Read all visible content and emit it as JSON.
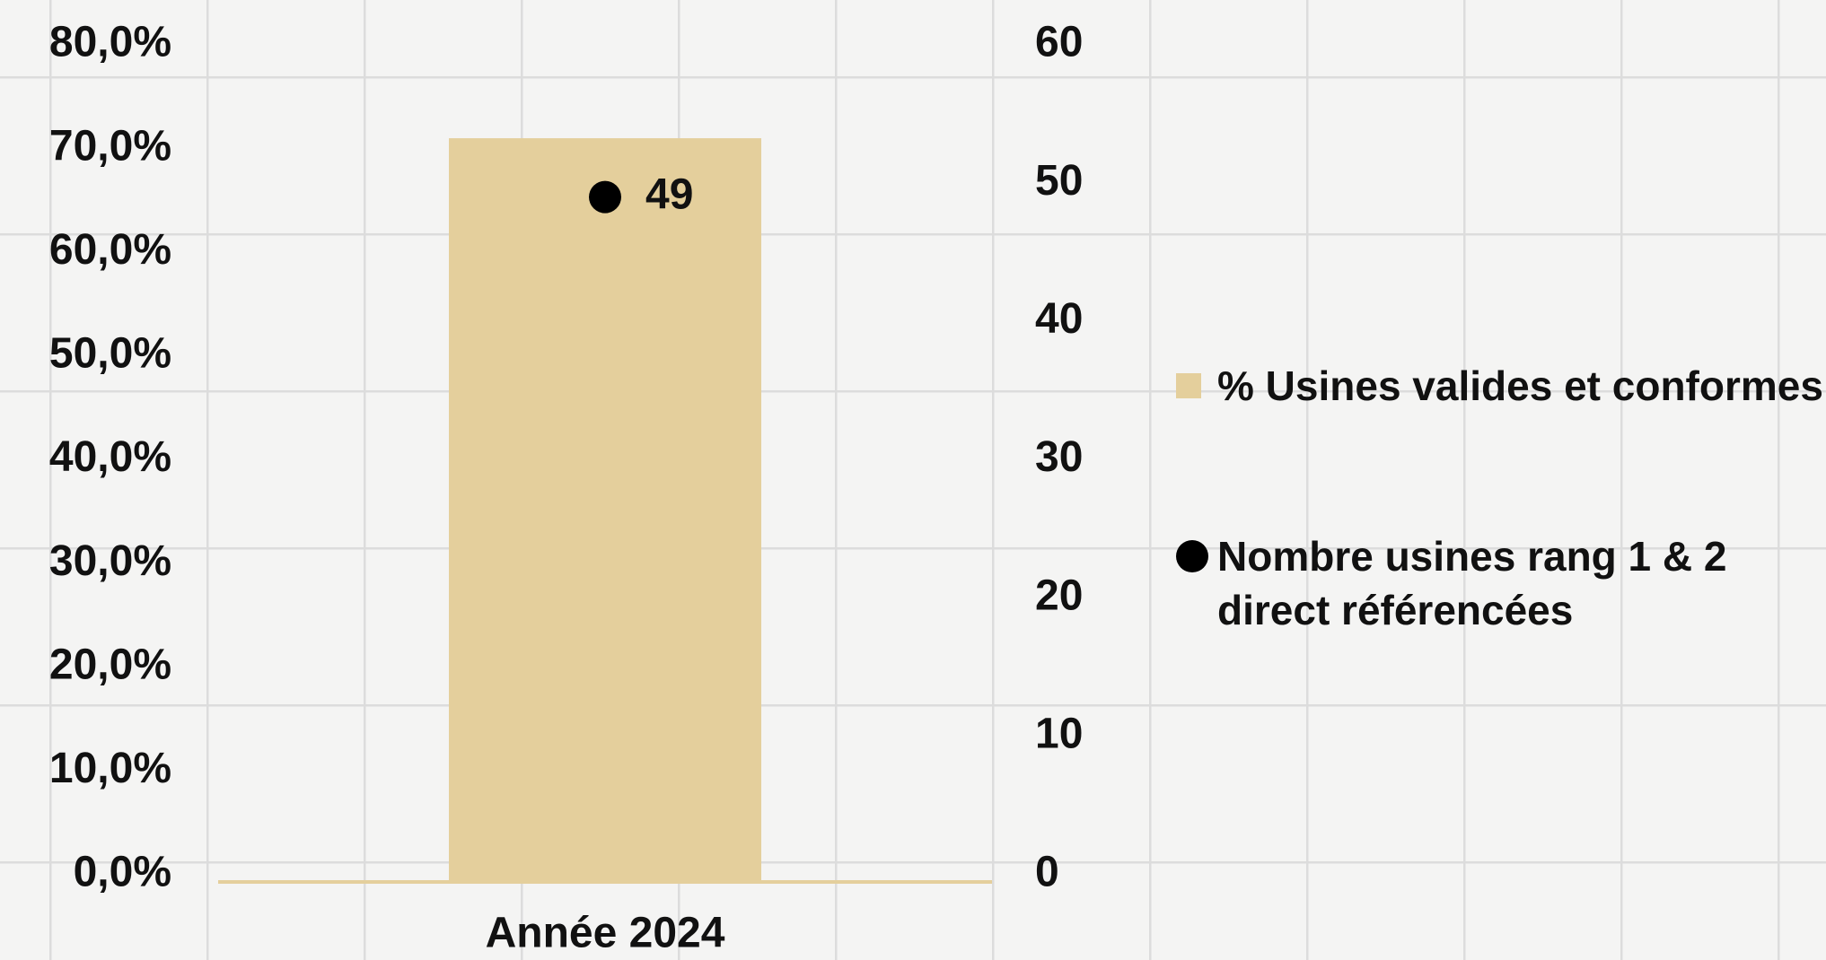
{
  "chart_data": {
    "type": "bar",
    "categories": [
      "Année 2024"
    ],
    "series": [
      {
        "name": "% Usines valides et conformes",
        "color": "#e4cf9c",
        "values": [
          71
        ]
      },
      {
        "name": "Nombre usines rang 1 & 2 direct référencées",
        "color": "#000000",
        "values": [
          49
        ],
        "value_labels": [
          "49"
        ],
        "axis": "y2",
        "type": "scatter"
      }
    ],
    "ylim": [
      0,
      80
    ],
    "yticks": [
      {
        "value": 0,
        "label": "0,0%"
      },
      {
        "value": 10,
        "label": "10,0%"
      },
      {
        "value": 20,
        "label": "20,0%"
      },
      {
        "value": 30,
        "label": "30,0%"
      },
      {
        "value": 40,
        "label": "40,0%"
      },
      {
        "value": 50,
        "label": "50,0%"
      },
      {
        "value": 60,
        "label": "60,0%"
      },
      {
        "value": 70,
        "label": "70,0%"
      },
      {
        "value": 80,
        "label": "80,0%"
      }
    ],
    "y2lim": [
      0,
      60
    ],
    "y2ticks": [
      0,
      10,
      20,
      30,
      40,
      50,
      60
    ],
    "legend": "right"
  }
}
